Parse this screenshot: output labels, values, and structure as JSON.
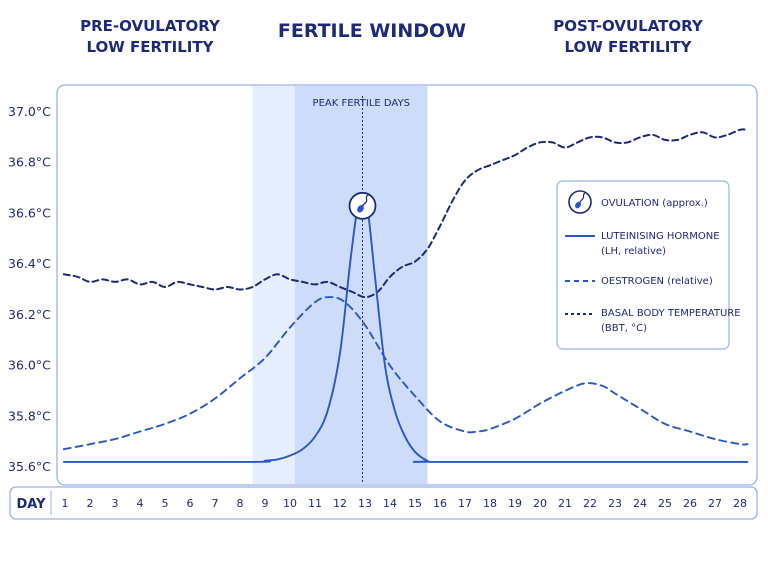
{
  "header": {
    "left": [
      "PRE-OVULATORY",
      "LOW FERTILITY"
    ],
    "center": "FERTILE WINDOW",
    "right": [
      "POST-OVULATORY",
      "LOW FERTILITY"
    ]
  },
  "chart_data": {
    "type": "line",
    "xlabel": "DAY",
    "x": [
      1,
      2,
      3,
      4,
      5,
      6,
      7,
      8,
      9,
      10,
      11,
      12,
      13,
      14,
      15,
      16,
      17,
      18,
      19,
      20,
      21,
      22,
      23,
      24,
      25,
      26,
      27,
      28
    ],
    "ylim": [
      35.6,
      37.0
    ],
    "yticks": [
      "35.6°C",
      "35.8°C",
      "36.0°C",
      "36.2°C",
      "36.4°C",
      "36.6°C",
      "36.8°C",
      "37.0°C"
    ],
    "ytick_values": [
      35.6,
      35.8,
      36.0,
      36.2,
      36.4,
      36.6,
      36.8,
      37.0
    ],
    "bands": [
      {
        "name": "fertile-window",
        "from": 8.5,
        "to": 15.5,
        "color": "#e6edfc"
      },
      {
        "name": "peak-fertile-days",
        "label": "PEAK FERTILE DAYS",
        "from": 10.2,
        "to": 15.5,
        "color": "#cddcf8"
      }
    ],
    "ovulation_day": 12.9,
    "series": [
      {
        "name": "BASAL BODY TEMPERATURE",
        "subname": "(BBT, °C)",
        "style": "dotted",
        "color": "#1e2a78",
        "points": [
          [
            0.95,
            36.36
          ],
          [
            1.5,
            36.35
          ],
          [
            2,
            36.33
          ],
          [
            2.5,
            36.34
          ],
          [
            3,
            36.33
          ],
          [
            3.5,
            36.34
          ],
          [
            4,
            36.32
          ],
          [
            4.5,
            36.33
          ],
          [
            5,
            36.31
          ],
          [
            5.5,
            36.33
          ],
          [
            6,
            36.32
          ],
          [
            6.5,
            36.31
          ],
          [
            7,
            36.3
          ],
          [
            7.5,
            36.31
          ],
          [
            8,
            36.3
          ],
          [
            8.5,
            36.31
          ],
          [
            9,
            36.34
          ],
          [
            9.5,
            36.36
          ],
          [
            10,
            36.34
          ],
          [
            10.5,
            36.33
          ],
          [
            11,
            36.32
          ],
          [
            11.5,
            36.33
          ],
          [
            12,
            36.31
          ],
          [
            12.5,
            36.29
          ],
          [
            13,
            36.27
          ],
          [
            13.5,
            36.29
          ],
          [
            14,
            36.35
          ],
          [
            14.5,
            36.39
          ],
          [
            15,
            36.41
          ],
          [
            15.5,
            36.46
          ],
          [
            16,
            36.55
          ],
          [
            16.5,
            36.65
          ],
          [
            17,
            36.73
          ],
          [
            17.5,
            36.77
          ],
          [
            18,
            36.79
          ],
          [
            18.5,
            36.81
          ],
          [
            19,
            36.83
          ],
          [
            19.5,
            36.86
          ],
          [
            20,
            36.88
          ],
          [
            20.5,
            36.88
          ],
          [
            21,
            36.86
          ],
          [
            21.5,
            36.88
          ],
          [
            22,
            36.9
          ],
          [
            22.5,
            36.9
          ],
          [
            23,
            36.88
          ],
          [
            23.5,
            36.88
          ],
          [
            24,
            36.9
          ],
          [
            24.5,
            36.91
          ],
          [
            25,
            36.89
          ],
          [
            25.5,
            36.89
          ],
          [
            26,
            36.91
          ],
          [
            26.5,
            36.92
          ],
          [
            27,
            36.9
          ],
          [
            27.5,
            36.91
          ],
          [
            28,
            36.93
          ],
          [
            28.3,
            36.93
          ]
        ]
      },
      {
        "name": "OESTROGEN",
        "subname": "(relative)",
        "style": "dashed",
        "color": "#2a56c6",
        "points": [
          [
            0.95,
            35.67
          ],
          [
            2,
            35.69
          ],
          [
            3,
            35.71
          ],
          [
            4,
            35.74
          ],
          [
            5,
            35.77
          ],
          [
            6,
            35.81
          ],
          [
            7,
            35.87
          ],
          [
            8,
            35.95
          ],
          [
            9,
            36.03
          ],
          [
            10,
            36.15
          ],
          [
            11,
            36.25
          ],
          [
            11.6,
            36.27
          ],
          [
            12.2,
            36.25
          ],
          [
            13,
            36.16
          ],
          [
            14,
            36.0
          ],
          [
            15,
            35.88
          ],
          [
            16,
            35.78
          ],
          [
            17,
            35.74
          ],
          [
            17.5,
            35.74
          ],
          [
            18,
            35.75
          ],
          [
            19,
            35.79
          ],
          [
            20,
            35.85
          ],
          [
            21,
            35.9
          ],
          [
            21.8,
            35.93
          ],
          [
            22.5,
            35.92
          ],
          [
            23,
            35.89
          ],
          [
            24,
            35.83
          ],
          [
            25,
            35.77
          ],
          [
            26,
            35.74
          ],
          [
            27,
            35.71
          ],
          [
            28,
            35.69
          ],
          [
            28.3,
            35.69
          ]
        ]
      },
      {
        "name": "LUTEINISING HORMONE",
        "subname": "(LH, relative)",
        "style": "solid",
        "color": "#2a56c6",
        "points": [
          [
            0.95,
            35.62
          ],
          [
            8.5,
            35.62
          ],
          [
            9,
            35.625
          ],
          [
            9.5,
            35.63
          ],
          [
            10,
            35.645
          ],
          [
            10.5,
            35.67
          ],
          [
            11,
            35.72
          ],
          [
            11.5,
            35.82
          ],
          [
            12,
            36.05
          ],
          [
            12.4,
            36.4
          ],
          [
            12.7,
            36.62
          ],
          [
            12.9,
            36.64
          ],
          [
            13.1,
            36.62
          ],
          [
            13.4,
            36.35
          ],
          [
            13.8,
            36.0
          ],
          [
            14.2,
            35.82
          ],
          [
            14.6,
            35.72
          ],
          [
            15,
            35.66
          ],
          [
            15.5,
            35.625
          ],
          [
            16,
            35.62
          ],
          [
            28.3,
            35.62
          ]
        ]
      }
    ],
    "legend": {
      "position": "right",
      "entries": [
        {
          "name": "OVULATION (approx.)",
          "icon": "sperm-icon"
        },
        {
          "name": "LUTEINISING HORMONE",
          "subname": "(LH, relative)",
          "style": "solid"
        },
        {
          "name": "OESTROGEN",
          "subname": "(relative)",
          "style": "dashed"
        },
        {
          "name": "BASAL BODY TEMPERATURE",
          "subname": "(BBT, °C)",
          "style": "dotted"
        }
      ]
    },
    "colors": {
      "navy": "#1e2a78",
      "blue": "#2a56c6",
      "frame": "#9ab1e8"
    }
  }
}
